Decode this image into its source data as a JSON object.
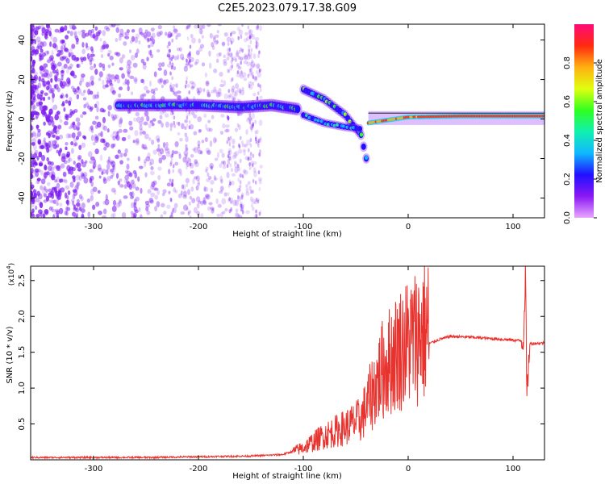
{
  "title": "C2E5.2023.079.17.38.G09",
  "colors": {
    "spectrum_dots": "#7a18f0",
    "snr_line": "#e8322e",
    "axis": "#000000"
  },
  "chart_data": [
    {
      "type": "heatmap",
      "name": "spectrogram",
      "xlabel": "Height of straight line (km)",
      "ylabel": "Frequency (Hz)",
      "xlim": [
        -360,
        130
      ],
      "ylim": [
        -50,
        48
      ],
      "x_ticks": [
        -300,
        -200,
        -100,
        0,
        100
      ],
      "y_ticks": [
        -40,
        -20,
        0,
        20,
        40
      ],
      "colorbar": {
        "label": "Normalized spectral amplitude",
        "range": [
          0,
          1
        ],
        "ticks": [
          "0.0",
          "0.2",
          "0.4",
          "0.6",
          "0.8"
        ],
        "colors": [
          "#e8a6ff",
          "#8a18f4",
          "#2010ff",
          "#10b8ff",
          "#10f0b0",
          "#30ff20",
          "#e0ff10",
          "#ffb010",
          "#ff2a10",
          "#ff0a78"
        ]
      },
      "features": [
        {
          "name": "noise_region",
          "x_range": [
            -360,
            -140
          ],
          "freq_range": [
            -50,
            48
          ]
        },
        {
          "name": "main_track",
          "points": [
            [
              -277,
              7
            ],
            [
              -250,
              7
            ],
            [
              -200,
              7
            ],
            [
              -160,
              6
            ],
            [
              -130,
              7
            ],
            [
              -105,
              5
            ]
          ]
        },
        {
          "name": "descending_tail",
          "points": [
            [
              -100,
              15
            ],
            [
              -80,
              10
            ],
            [
              -60,
              2
            ],
            [
              -45,
              -8
            ],
            [
              -40,
              -20
            ]
          ]
        },
        {
          "name": "lower_branch",
          "points": [
            [
              -100,
              2
            ],
            [
              -80,
              -2
            ],
            [
              -60,
              -4
            ],
            [
              -45,
              -5
            ]
          ]
        },
        {
          "name": "carrier_line",
          "points": [
            [
              -38,
              -2
            ],
            [
              0,
              1
            ],
            [
              50,
              1.5
            ],
            [
              130,
              1.5
            ]
          ]
        }
      ]
    },
    {
      "type": "line",
      "name": "snr",
      "xlabel": "Height of straight line (km)",
      "ylabel": "SNR (10 * v/v)",
      "scale_label": "(x10",
      "scale_exponent": "4",
      "xlim": [
        -360,
        130
      ],
      "ylim": [
        0,
        2.7
      ],
      "x_ticks": [
        -300,
        -200,
        -100,
        0,
        100
      ],
      "y_ticks": [
        "0.5",
        "1.0",
        "1.5",
        "2.0",
        "2.5"
      ],
      "envelope": [
        [
          -360,
          0.02
        ],
        [
          -250,
          0.02
        ],
        [
          -150,
          0.04
        ],
        [
          -120,
          0.06
        ],
        [
          -100,
          0.15
        ],
        [
          -80,
          0.3
        ],
        [
          -60,
          0.4
        ],
        [
          -45,
          0.5
        ],
        [
          -35,
          0.8
        ],
        [
          -25,
          1.1
        ],
        [
          -10,
          1.35
        ],
        [
          0,
          1.45
        ],
        [
          10,
          1.55
        ],
        [
          20,
          1.62
        ],
        [
          30,
          1.68
        ],
        [
          40,
          1.72
        ],
        [
          60,
          1.71
        ],
        [
          80,
          1.69
        ],
        [
          100,
          1.67
        ],
        [
          110,
          1.66
        ],
        [
          112,
          2.7
        ],
        [
          113,
          0.85
        ],
        [
          116,
          1.62
        ],
        [
          130,
          1.63
        ]
      ]
    }
  ]
}
